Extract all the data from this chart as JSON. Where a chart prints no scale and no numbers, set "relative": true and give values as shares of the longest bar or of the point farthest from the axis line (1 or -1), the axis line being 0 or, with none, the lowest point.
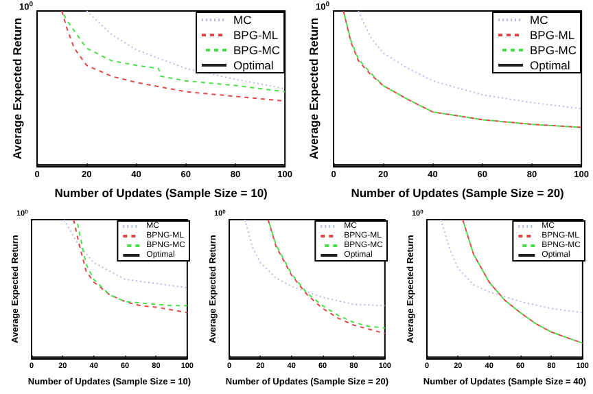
{
  "chart_data": [
    {
      "type": "line",
      "relative": true,
      "ylabel": "Average Expected Return",
      "xlabel": "Number of Updates (Sample Size = 10)",
      "xlim": [
        0,
        100
      ],
      "xticks": [
        0,
        20,
        40,
        60,
        80,
        100
      ],
      "legend": "top right",
      "marker": "none",
      "annotations": [
        "10$^{0}$"
      ],
      "series": [
        {
          "name": "MC",
          "color": "#b4bce6",
          "line_style": "dotted",
          "x": [
            20,
            30,
            40,
            60,
            80,
            100
          ],
          "values": [
            1,
            0.85,
            0.75,
            0.63,
            0.56,
            0.5
          ]
        },
        {
          "name": "BPG-ML",
          "color": "#e04848",
          "line_style": "dashed",
          "x": [
            10,
            12,
            15,
            20,
            30,
            40,
            60,
            80,
            100
          ],
          "values": [
            1,
            0.89,
            0.76,
            0.65,
            0.58,
            0.54,
            0.48,
            0.45,
            0.42
          ]
        },
        {
          "name": "BPG-MC",
          "color": "#48e048",
          "line_style": "dashed",
          "x": [
            10,
            12,
            20,
            30,
            40,
            49,
            50,
            60,
            80,
            100
          ],
          "values": [
            1,
            0.94,
            0.76,
            0.68,
            0.65,
            0.63,
            0.58,
            0.55,
            0.52,
            0.48
          ]
        },
        {
          "name": "Optimal",
          "color": "#202020",
          "line_style": "solid",
          "x": [
            0,
            100
          ],
          "values": [
            0.01,
            0.01
          ]
        }
      ]
    },
    {
      "type": "line",
      "relative": true,
      "ylabel": "Average Expected Return",
      "xlabel": "Number of Updates (Sample Size = 20)",
      "xlim": [
        0,
        100
      ],
      "xticks": [
        0,
        20,
        40,
        60,
        80,
        100
      ],
      "legend": "top right",
      "marker": "none",
      "annotations": [
        "10$^{0}$"
      ],
      "series": [
        {
          "name": "MC",
          "color": "#b4bce6",
          "line_style": "dotted",
          "x": [
            10,
            15,
            20,
            30,
            40,
            60,
            80,
            100
          ],
          "values": [
            1,
            0.83,
            0.73,
            0.63,
            0.55,
            0.46,
            0.41,
            0.37
          ]
        },
        {
          "name": "BPG-ML",
          "color": "#e04848",
          "line_style": "dashed",
          "x": [
            4,
            7,
            10,
            15,
            20,
            30,
            40,
            60,
            80,
            100
          ],
          "values": [
            1,
            0.8,
            0.68,
            0.59,
            0.52,
            0.43,
            0.35,
            0.3,
            0.27,
            0.25
          ]
        },
        {
          "name": "BPG-MC",
          "color": "#48e048",
          "line_style": "dashed",
          "x": [
            4,
            7,
            10,
            15,
            20,
            30,
            40,
            60,
            80,
            100
          ],
          "values": [
            1,
            0.81,
            0.69,
            0.6,
            0.52,
            0.43,
            0.35,
            0.3,
            0.27,
            0.25
          ]
        },
        {
          "name": "Optimal",
          "color": "#202020",
          "line_style": "solid",
          "x": [
            0,
            100
          ],
          "values": [
            0.01,
            0.01
          ]
        }
      ]
    },
    {
      "type": "line",
      "relative": true,
      "ylabel": "Average Expected Return",
      "xlabel": "Number of Updates (Sample Size = 10)",
      "xlim": [
        0,
        100
      ],
      "xticks": [
        0,
        20,
        40,
        60,
        80,
        100
      ],
      "legend": "top right",
      "marker": "none",
      "annotations": [
        "10$^{0}$"
      ],
      "series": [
        {
          "name": "MC",
          "color": "#b4bce6",
          "line_style": "dotted",
          "x": [
            21,
            30,
            40,
            60,
            80,
            100
          ],
          "values": [
            1,
            0.82,
            0.69,
            0.57,
            0.54,
            0.51
          ]
        },
        {
          "name": "BPNG-ML",
          "color": "#e04848",
          "line_style": "dashed",
          "x": [
            27,
            30,
            35,
            40,
            50,
            60,
            70,
            80,
            90,
            100
          ],
          "values": [
            1,
            0.85,
            0.63,
            0.55,
            0.46,
            0.41,
            0.38,
            0.37,
            0.35,
            0.33
          ]
        },
        {
          "name": "BPNG-MC",
          "color": "#48e048",
          "line_style": "dashed",
          "x": [
            29,
            32,
            35,
            40,
            50,
            60,
            70,
            80,
            90,
            100
          ],
          "values": [
            1,
            0.84,
            0.68,
            0.57,
            0.46,
            0.41,
            0.4,
            0.39,
            0.38,
            0.38
          ]
        },
        {
          "name": "Optimal",
          "color": "#202020",
          "line_style": "solid",
          "x": [
            0,
            100
          ],
          "values": [
            0.01,
            0.01
          ]
        }
      ]
    },
    {
      "type": "line",
      "relative": true,
      "ylabel": "Average Expected Return",
      "xlabel": "Number of Updates (Sample Size = 20)",
      "xlim": [
        0,
        100
      ],
      "xticks": [
        0,
        20,
        40,
        60,
        80,
        100
      ],
      "legend": "top right",
      "marker": "none",
      "annotations": [
        "10$^{0}$"
      ],
      "series": [
        {
          "name": "MC",
          "color": "#b4bce6",
          "line_style": "dotted",
          "x": [
            10,
            15,
            20,
            30,
            40,
            60,
            80,
            100
          ],
          "values": [
            1,
            0.8,
            0.69,
            0.58,
            0.52,
            0.44,
            0.39,
            0.38
          ]
        },
        {
          "name": "BPNG-ML",
          "color": "#e04848",
          "line_style": "dashed",
          "x": [
            25,
            30,
            40,
            50,
            60,
            70,
            80,
            90,
            100
          ],
          "values": [
            1,
            0.81,
            0.6,
            0.46,
            0.36,
            0.29,
            0.24,
            0.21,
            0.18
          ]
        },
        {
          "name": "BPNG-MC",
          "color": "#48e048",
          "line_style": "dashed",
          "x": [
            25,
            30,
            40,
            50,
            60,
            70,
            80,
            90,
            100
          ],
          "values": [
            1,
            0.82,
            0.61,
            0.47,
            0.38,
            0.31,
            0.26,
            0.23,
            0.22
          ]
        },
        {
          "name": "Optimal",
          "color": "#202020",
          "line_style": "solid",
          "x": [
            0,
            100
          ],
          "values": [
            0.01,
            0.01
          ]
        }
      ]
    },
    {
      "type": "line",
      "relative": true,
      "ylabel": "Average Expected Return",
      "xlabel": "Number of Updates (Sample Size = 40)",
      "xlim": [
        0,
        100
      ],
      "xticks": [
        0,
        20,
        40,
        60,
        80,
        100
      ],
      "legend": "top right",
      "marker": "none",
      "annotations": [
        "10$^{0}$"
      ],
      "series": [
        {
          "name": "MC",
          "color": "#b4bce6",
          "line_style": "dotted",
          "x": [
            9,
            15,
            20,
            30,
            40,
            60,
            80,
            100
          ],
          "values": [
            1,
            0.78,
            0.65,
            0.53,
            0.48,
            0.41,
            0.36,
            0.33
          ]
        },
        {
          "name": "BPNG-ML",
          "color": "#e04848",
          "line_style": "dashed",
          "x": [
            23,
            30,
            40,
            50,
            60,
            70,
            80,
            90,
            100
          ],
          "values": [
            1,
            0.75,
            0.55,
            0.42,
            0.33,
            0.25,
            0.19,
            0.15,
            0.11
          ]
        },
        {
          "name": "BPNG-MC",
          "color": "#48e048",
          "line_style": "dashed",
          "x": [
            23,
            30,
            40,
            50,
            60,
            70,
            80,
            90,
            100
          ],
          "values": [
            1,
            0.75,
            0.55,
            0.42,
            0.33,
            0.25,
            0.19,
            0.15,
            0.11
          ]
        },
        {
          "name": "Optimal",
          "color": "#202020",
          "line_style": "solid",
          "x": [
            0,
            100
          ],
          "values": [
            0.01,
            0.01
          ]
        }
      ]
    }
  ]
}
